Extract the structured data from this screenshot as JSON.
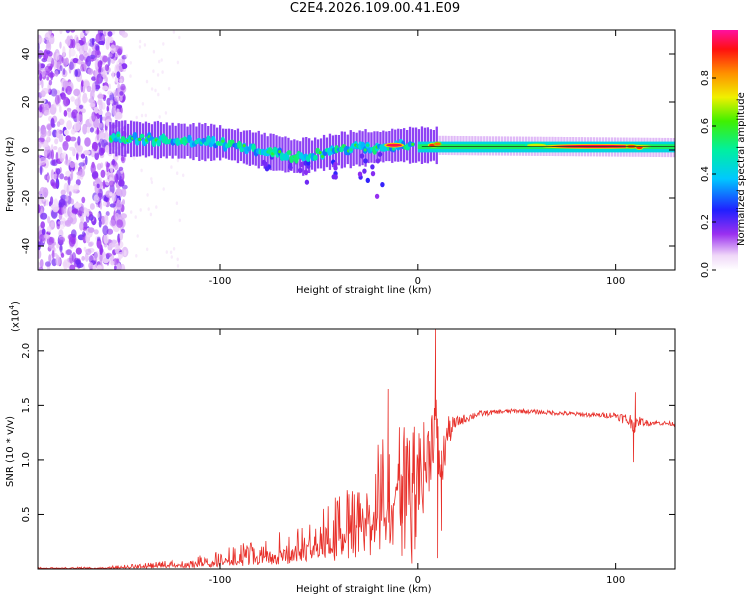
{
  "title": "C2E4.2026.109.00.41.E09",
  "chart_data": [
    {
      "type": "heatmap",
      "xlabel": "Height of straight line (km)",
      "ylabel": "Frequency (Hz)",
      "xlim": [
        -192,
        130
      ],
      "ylim": [
        -50,
        50
      ],
      "xticks": [
        -100,
        0,
        100
      ],
      "yticks": [
        -40,
        -20,
        0,
        20,
        40
      ],
      "colorbar": {
        "label": "Normalized spectral amplitude",
        "range": [
          0,
          1
        ],
        "ticks": [
          "0.0",
          "0.2",
          "0.4",
          "0.6",
          "0.8"
        ],
        "tick_values": [
          0.0,
          0.2,
          0.4,
          0.6,
          0.8
        ]
      },
      "band_centerline": [
        [
          -155,
          5
        ],
        [
          -100,
          3
        ],
        [
          -60,
          -3
        ],
        [
          -40,
          0
        ],
        [
          -10,
          2
        ],
        [
          0,
          2
        ],
        [
          130,
          1
        ]
      ],
      "noise_region_x": [
        -192,
        -148
      ]
    },
    {
      "type": "line",
      "xlabel": "Height of straight line (km)",
      "ylabel": "SNR (10 * v/v)",
      "y_scale_note": "(x10",
      "y_scale_exp": "4",
      "xlim": [
        -192,
        130
      ],
      "ylim": [
        0,
        2.2
      ],
      "xticks": [
        -100,
        0,
        100
      ],
      "yticks": [
        "0.5",
        "1.0",
        "1.5",
        "2.0"
      ],
      "ytick_values": [
        0.5,
        1.0,
        1.5,
        2.0
      ],
      "series": [
        {
          "name": "SNR",
          "color": "#e8302a",
          "x": [
            -192,
            -160,
            -140,
            -120,
            -100,
            -80,
            -60,
            -50,
            -40,
            -30,
            -25,
            -20,
            -15,
            -10,
            -5,
            0,
            5,
            9,
            10,
            12,
            15,
            20,
            30,
            40,
            50,
            60,
            70,
            80,
            90,
            100,
            104,
            108,
            110,
            112,
            115,
            120,
            130
          ],
          "y": [
            0.01,
            0.01,
            0.03,
            0.05,
            0.1,
            0.16,
            0.25,
            0.3,
            0.4,
            0.55,
            0.62,
            0.7,
            0.8,
            0.82,
            0.9,
            0.85,
            1.0,
            1.4,
            1.1,
            0.9,
            1.25,
            1.35,
            1.42,
            1.44,
            1.45,
            1.44,
            1.43,
            1.42,
            1.41,
            1.41,
            1.38,
            1.35,
            1.3,
            1.36,
            1.34,
            1.34,
            1.33
          ],
          "amp": [
            0.005,
            0.01,
            0.02,
            0.04,
            0.08,
            0.12,
            0.18,
            0.22,
            0.3,
            0.35,
            0.4,
            0.45,
            0.48,
            0.5,
            0.5,
            0.45,
            0.4,
            0.3,
            0.3,
            0.25,
            0.15,
            0.05,
            0.03,
            0.02,
            0.02,
            0.02,
            0.02,
            0.02,
            0.02,
            0.03,
            0.05,
            0.08,
            0.06,
            0.04,
            0.03,
            0.02,
            0.02
          ]
        }
      ],
      "spikes": [
        [
          -3,
          0.05
        ],
        [
          -15,
          1.65
        ],
        [
          -8,
          0.12
        ],
        [
          9,
          2.2
        ],
        [
          10,
          0.1
        ],
        [
          12,
          0.35
        ],
        [
          110,
          1.62
        ],
        [
          109,
          0.98
        ]
      ]
    }
  ]
}
